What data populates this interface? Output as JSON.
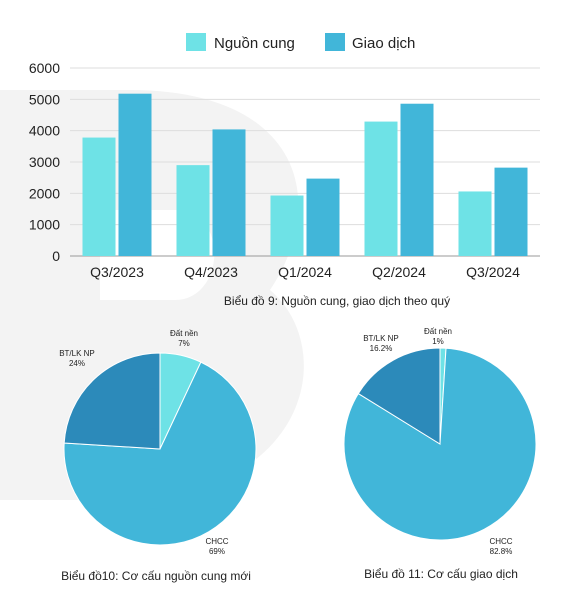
{
  "colors": {
    "supply": "#6EE2E6",
    "transaction": "#41B6D9",
    "chcc": "#41B6D9",
    "bt_lk": "#2C8ABA",
    "dat_nen": "#6EE2E6",
    "gridline": "#dddddd"
  },
  "chart_data": [
    {
      "type": "bar",
      "title": "",
      "caption": "Biểu đồ 9: Nguồn cung, giao dịch theo quý",
      "categories": [
        "Q3/2023",
        "Q4/2023",
        "Q1/2024",
        "Q2/2024",
        "Q3/2024"
      ],
      "series": [
        {
          "name": "Nguồn cung",
          "values": [
            3780,
            2900,
            1930,
            4290,
            2060
          ]
        },
        {
          "name": "Giao dịch",
          "values": [
            5180,
            4040,
            2470,
            4860,
            2820
          ]
        }
      ],
      "yticks": [
        "0",
        "1000",
        "2000",
        "3000",
        "4000",
        "5000",
        "6000"
      ],
      "ylim": [
        0,
        6000
      ],
      "grid": true,
      "legend_position": "top"
    },
    {
      "type": "pie",
      "caption": "Biểu đồ10: Cơ cấu nguồn cung mới",
      "slices": [
        {
          "label": "Đất nền",
          "value_text": "7%",
          "value": 7
        },
        {
          "label": "CHCC",
          "value_text": "69%",
          "value": 69
        },
        {
          "label": "BT/LK NP",
          "value_text": "24%",
          "value": 24
        }
      ]
    },
    {
      "type": "pie",
      "caption": "Biểu đồ 11: Cơ cấu giao dịch",
      "slices": [
        {
          "label": "Đất nền",
          "value_text": "1%",
          "value": 1
        },
        {
          "label": "CHCC",
          "value_text": "82.8%",
          "value": 82.8
        },
        {
          "label": "BT/LK NP",
          "value_text": "16.2%",
          "value": 16.2
        }
      ]
    }
  ]
}
